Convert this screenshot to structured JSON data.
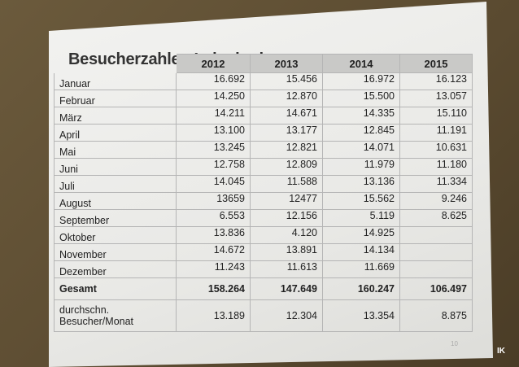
{
  "slide": {
    "title": "Besucherzahlen Leinebad",
    "page_number": "10"
  },
  "table": {
    "columns": [
      "2012",
      "2013",
      "2014",
      "2015"
    ],
    "rows": [
      {
        "label": "Januar",
        "values": [
          "16.692",
          "15.456",
          "16.972",
          "16.123"
        ]
      },
      {
        "label": "Februar",
        "values": [
          "14.250",
          "12.870",
          "15.500",
          "13.057"
        ]
      },
      {
        "label": "März",
        "values": [
          "14.211",
          "14.671",
          "14.335",
          "15.110"
        ]
      },
      {
        "label": "April",
        "values": [
          "13.100",
          "13.177",
          "12.845",
          "11.191"
        ]
      },
      {
        "label": "Mai",
        "values": [
          "13.245",
          "12.821",
          "14.071",
          "10.631"
        ]
      },
      {
        "label": "Juni",
        "values": [
          "12.758",
          "12.809",
          "11.979",
          "11.180"
        ]
      },
      {
        "label": "Juli",
        "values": [
          "14.045",
          "11.588",
          "13.136",
          "11.334"
        ]
      },
      {
        "label": "August",
        "values": [
          "13659",
          "12477",
          "15.562",
          "9.246"
        ]
      },
      {
        "label": "September",
        "values": [
          "6.553",
          "12.156",
          "5.119",
          "8.625"
        ]
      },
      {
        "label": "Oktober",
        "values": [
          "13.836",
          "4.120",
          "14.925"
        ]
      },
      {
        "label": "November",
        "values": [
          "14.672",
          "13.891",
          "14.134"
        ]
      },
      {
        "label": "Dezember",
        "values": [
          "11.243",
          "11.613",
          "11.669"
        ]
      },
      {
        "label": "Gesamt",
        "values": [
          "158.264",
          "147.649",
          "160.247",
          "106.497"
        ],
        "bold": true
      },
      {
        "label": "durchschn. Besucher/Monat",
        "values": [
          "13.189",
          "12.304",
          "13.354",
          "8.875"
        ]
      }
    ]
  },
  "watermark": "IK"
}
